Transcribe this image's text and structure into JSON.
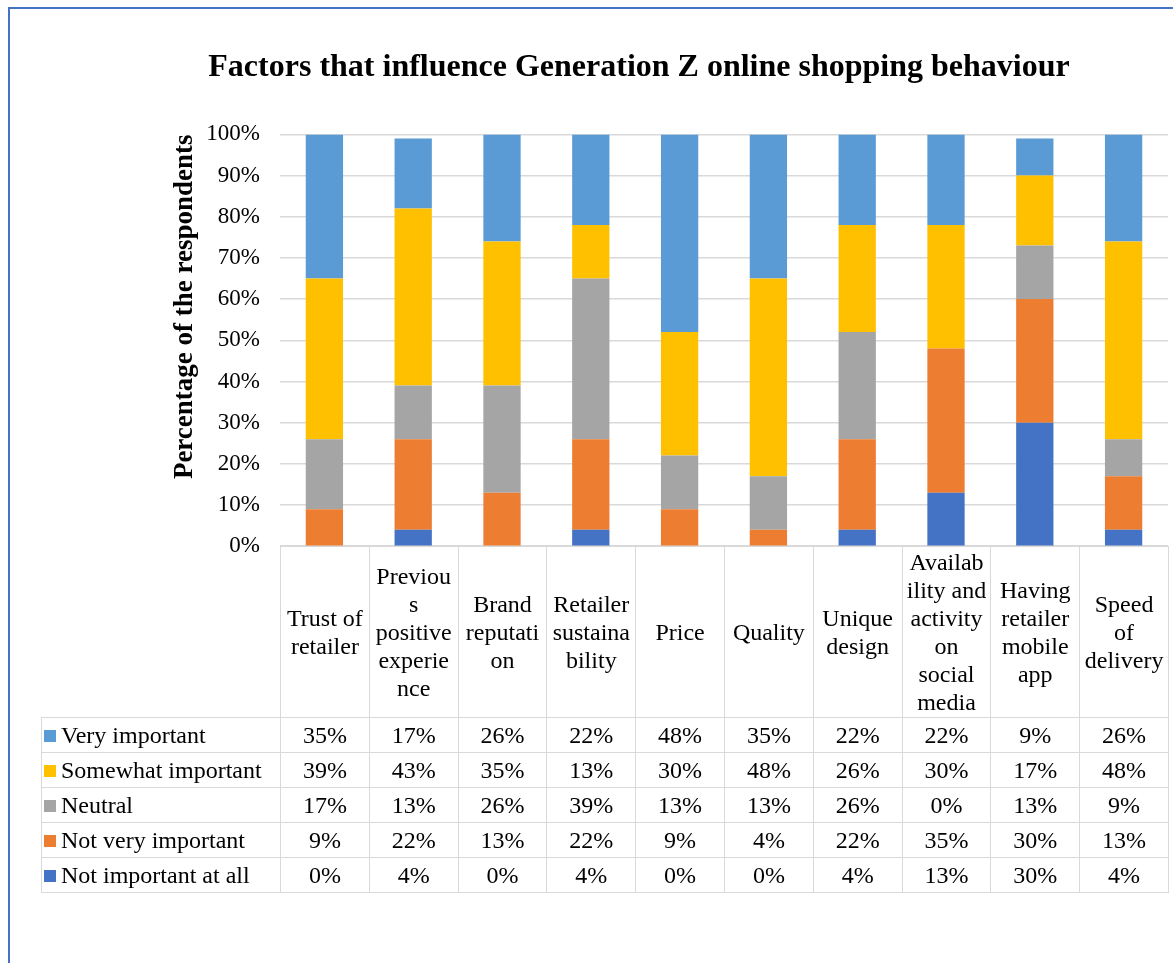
{
  "chart_data": {
    "type": "bar",
    "stacked": true,
    "title": "Factors that influence Generation Z online shopping behaviour",
    "ylabel": "Percentage of the respondents",
    "categories": [
      "Trust of retailer",
      "Previous positive experience",
      "Brand reputation",
      "Retailer sustainability",
      "Price",
      "Quality",
      "Unique design",
      "Availability and activity on social media",
      "Having retailer mobile app",
      "Speed of delivery"
    ],
    "series": [
      {
        "name": "Not important at all",
        "color": "#4472c4",
        "values": [
          0,
          4,
          0,
          4,
          0,
          0,
          4,
          13,
          30,
          4
        ],
        "value_labels": [
          "0%",
          "4%",
          "0%",
          "4%",
          "0%",
          "0%",
          "4%",
          "13%",
          "30%",
          "4%"
        ]
      },
      {
        "name": "Not very important",
        "color": "#ed7d31",
        "values": [
          9,
          22,
          13,
          22,
          9,
          4,
          22,
          35,
          30,
          13
        ],
        "value_labels": [
          "9%",
          "22%",
          "13%",
          "22%",
          "9%",
          "4%",
          "22%",
          "35%",
          "30%",
          "13%"
        ]
      },
      {
        "name": "Neutral",
        "color": "#a5a5a5",
        "values": [
          17,
          13,
          26,
          39,
          13,
          13,
          26,
          0,
          13,
          9
        ],
        "value_labels": [
          "17%",
          "13%",
          "26%",
          "39%",
          "13%",
          "13%",
          "26%",
          "0%",
          "13%",
          "9%"
        ]
      },
      {
        "name": "Somewhat important",
        "color": "#ffc000",
        "values": [
          39,
          43,
          35,
          13,
          30,
          48,
          26,
          30,
          17,
          48
        ],
        "value_labels": [
          "39%",
          "43%",
          "35%",
          "13%",
          "30%",
          "48%",
          "26%",
          "30%",
          "17%",
          "48%"
        ]
      },
      {
        "name": "Very important",
        "color": "#5b9bd5",
        "values": [
          35,
          17,
          26,
          22,
          48,
          35,
          22,
          22,
          9,
          26
        ],
        "value_labels": [
          "35%",
          "17%",
          "26%",
          "22%",
          "48%",
          "35%",
          "22%",
          "22%",
          "9%",
          "26%"
        ]
      }
    ],
    "ylim": [
      0,
      100
    ],
    "yticks": [
      {
        "value": 0,
        "label": "0%"
      },
      {
        "value": 10,
        "label": "10%"
      },
      {
        "value": 20,
        "label": "20%"
      },
      {
        "value": 30,
        "label": "30%"
      },
      {
        "value": 40,
        "label": "40%"
      },
      {
        "value": 50,
        "label": "50%"
      },
      {
        "value": 60,
        "label": "60%"
      },
      {
        "value": 70,
        "label": "70%"
      },
      {
        "value": 80,
        "label": "80%"
      },
      {
        "value": 90,
        "label": "90%"
      },
      {
        "value": 100,
        "label": "100%"
      }
    ],
    "grid": "y",
    "legend": "bottom"
  }
}
